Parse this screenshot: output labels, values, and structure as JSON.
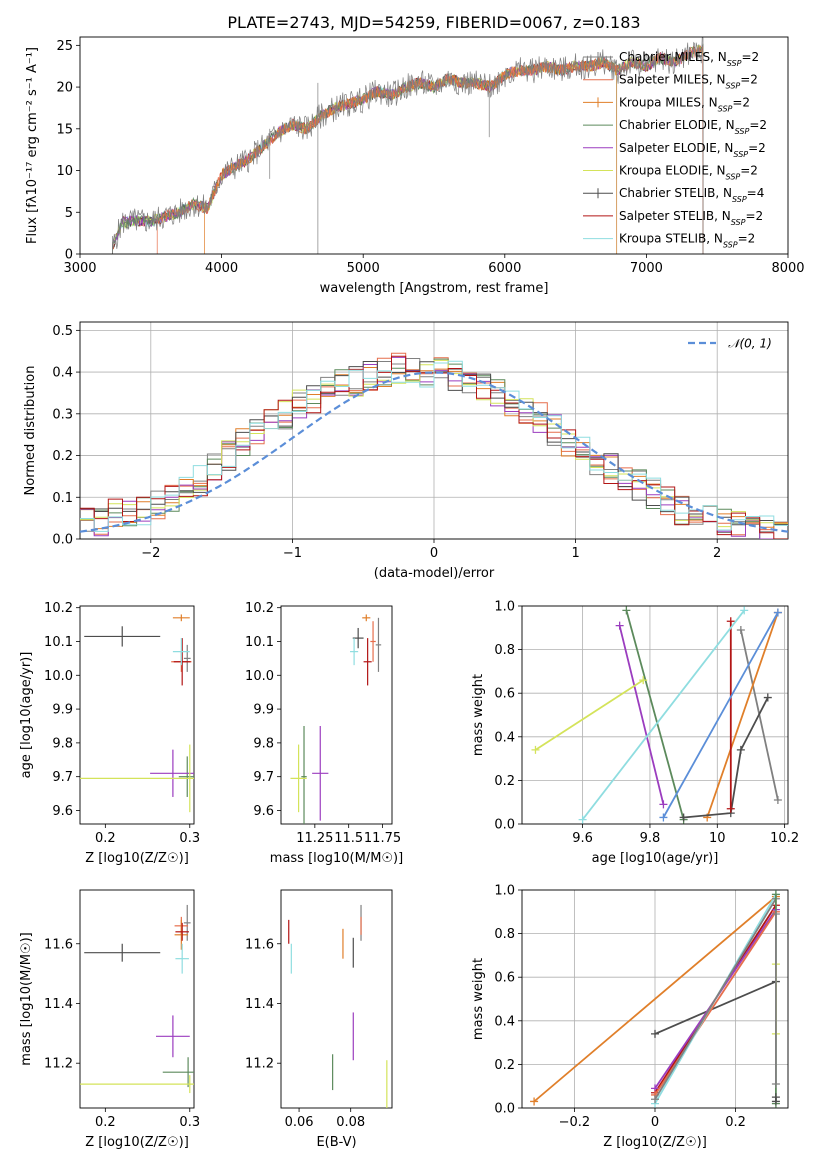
{
  "figure": {
    "title": "PLATE=2743, MJD=54259, FIBERID=0067, z=0.183"
  },
  "models": [
    {
      "name": "Chabrier MILES, N_SSP=2",
      "label_main": "Chabrier MILES, N",
      "label_sub": "SSP",
      "label_tail": "=2",
      "color": "#808080"
    },
    {
      "name": "Salpeter MILES, N_SSP=2",
      "label_main": "Salpeter MILES, N",
      "label_sub": "SSP",
      "label_tail": "=2",
      "color": "#e66e4c"
    },
    {
      "name": "Kroupa MILES, N_SSP=2",
      "label_main": "Kroupa MILES, N",
      "label_sub": "SSP",
      "label_tail": "=2",
      "color": "#e07f2a"
    },
    {
      "name": "Chabrier ELODIE, N_SSP=2",
      "label_main": "Chabrier ELODIE, N",
      "label_sub": "SSP",
      "label_tail": "=2",
      "color": "#5c8a5c"
    },
    {
      "name": "Salpeter ELODIE, N_SSP=2",
      "label_main": "Salpeter ELODIE, N",
      "label_sub": "SSP",
      "label_tail": "=2",
      "color": "#9b3dbf"
    },
    {
      "name": "Kroupa ELODIE, N_SSP=2",
      "label_main": "Kroupa ELODIE, N",
      "label_sub": "SSP",
      "label_tail": "=2",
      "color": "#d4e35a"
    },
    {
      "name": "Chabrier STELIB, N_SSP=4",
      "label_main": "Chabrier STELIB, N",
      "label_sub": "SSP",
      "label_tail": "=4",
      "color": "#4d4d4d"
    },
    {
      "name": "Salpeter STELIB, N_SSP=2",
      "label_main": "Salpeter STELIB, N",
      "label_sub": "SSP",
      "label_tail": "=2",
      "color": "#b21515"
    },
    {
      "name": "Kroupa STELIB, N_SSP=2",
      "label_main": "Kroupa STELIB, N",
      "label_sub": "SSP",
      "label_tail": "=2",
      "color": "#8fdde0"
    }
  ],
  "chart_data": [
    {
      "id": "spectrum",
      "type": "line",
      "xlabel": "wavelength [Angstrom, rest frame]",
      "ylabel": "Flux [fλ10⁻¹⁷ erg cm⁻² s⁻¹ A⁻¹]",
      "xlim": [
        3000,
        8000
      ],
      "ylim": [
        0,
        26
      ],
      "xticks": [
        3000,
        4000,
        5000,
        6000,
        7000,
        8000
      ],
      "yticks": [
        0,
        5,
        10,
        15,
        20,
        25
      ],
      "grid": false,
      "legend": "top-right",
      "x": [
        3220,
        3300,
        3400,
        3500,
        3600,
        3700,
        3800,
        3900,
        4000,
        4100,
        4200,
        4300,
        4400,
        4500,
        4600,
        4700,
        4800,
        4900,
        5000,
        5100,
        5200,
        5300,
        5400,
        5500,
        5600,
        5700,
        5800,
        5900,
        6000,
        6100,
        6200,
        6300,
        6400,
        6500,
        6600,
        6700,
        6800,
        6900,
        7000,
        7100,
        7200,
        7300,
        7400
      ],
      "y": [
        0.5,
        3.8,
        4.0,
        3.9,
        4.5,
        5.0,
        6.0,
        5.5,
        9.5,
        10.5,
        11.5,
        13.0,
        14.5,
        15.5,
        15.0,
        16.5,
        17.5,
        18.0,
        18.5,
        19.5,
        19.0,
        20.0,
        20.5,
        20.0,
        21.0,
        20.5,
        20.5,
        20.0,
        21.5,
        22.0,
        22.0,
        22.5,
        22.0,
        22.5,
        22.5,
        23.0,
        22.0,
        23.0,
        22.5,
        23.5,
        23.0,
        24.0,
        24.5
      ],
      "series_start_wavelengths": [
        3230,
        3545,
        3880,
        3230,
        3230,
        3230,
        3230,
        3230,
        3230
      ],
      "series_end_wavelengths": [
        7400,
        7400,
        6790,
        7400,
        7400,
        7400,
        7400,
        7400,
        6790
      ]
    },
    {
      "id": "residuals",
      "type": "line",
      "xlabel": "(data-model)/error",
      "ylabel": "Normed distribution",
      "xlim": [
        -2.5,
        2.5
      ],
      "ylim": [
        0,
        0.52
      ],
      "xticks": [
        -2,
        -1,
        0,
        1,
        2
      ],
      "yticks": [
        0.0,
        0.1,
        0.2,
        0.3,
        0.4,
        0.5
      ],
      "grid": true,
      "legend": "top-right",
      "legend_label": "𝒩(0, 1)",
      "gaussian": {
        "mean": 0,
        "sigma": 1,
        "color": "#5b8ed8"
      },
      "hist_bin_width": 0.1,
      "hist_centers": [
        -2.45,
        -2.35,
        -2.25,
        -2.15,
        -2.05,
        -1.95,
        -1.85,
        -1.75,
        -1.65,
        -1.55,
        -1.45,
        -1.35,
        -1.25,
        -1.15,
        -1.05,
        -0.95,
        -0.85,
        -0.75,
        -0.65,
        -0.55,
        -0.45,
        -0.35,
        -0.25,
        -0.15,
        -0.05,
        0.05,
        0.15,
        0.25,
        0.35,
        0.45,
        0.55,
        0.65,
        0.75,
        0.85,
        0.95,
        1.05,
        1.15,
        1.25,
        1.35,
        1.45,
        1.55,
        1.65,
        1.75,
        1.85,
        1.95,
        2.05,
        2.15,
        2.25,
        2.35,
        2.45
      ],
      "hist_base": [
        0.04,
        0.04,
        0.06,
        0.06,
        0.07,
        0.08,
        0.1,
        0.12,
        0.14,
        0.17,
        0.2,
        0.23,
        0.26,
        0.28,
        0.3,
        0.32,
        0.34,
        0.36,
        0.37,
        0.38,
        0.39,
        0.4,
        0.41,
        0.41,
        0.4,
        0.4,
        0.39,
        0.38,
        0.37,
        0.35,
        0.33,
        0.31,
        0.29,
        0.26,
        0.23,
        0.21,
        0.19,
        0.17,
        0.15,
        0.13,
        0.11,
        0.09,
        0.07,
        0.06,
        0.05,
        0.04,
        0.03,
        0.03,
        0.03,
        0.02
      ],
      "hist_jitter_seeds": [
        3,
        7,
        11,
        13,
        17,
        19,
        23,
        29,
        31
      ]
    },
    {
      "id": "age_vs_Z",
      "type": "scatter",
      "xlabel": "Z [log10(Z/Z☉)]",
      "ylabel": "age  [log10(age/yr)]",
      "xlim": [
        0.17,
        0.305
      ],
      "ylim": [
        9.56,
        10.205
      ],
      "xticks": [
        0.2,
        0.3
      ],
      "yticks": [
        9.6,
        9.7,
        9.8,
        9.9,
        10.0,
        10.1,
        10.2
      ],
      "points": [
        {
          "model": 0,
          "x": 0.297,
          "y": 10.05,
          "xerr": 0.004,
          "yerr": 0.04
        },
        {
          "model": 1,
          "x": 0.29,
          "y": 10.04,
          "xerr": 0.012,
          "yerr": 0.03
        },
        {
          "model": 2,
          "x": 0.29,
          "y": 10.17,
          "xerr": 0.01,
          "yerr": 0.01
        },
        {
          "model": 3,
          "x": 0.297,
          "y": 9.7,
          "xerr": 0.01,
          "yerr": 0.06
        },
        {
          "model": 4,
          "x": 0.28,
          "y": 9.71,
          "xerr": 0.027,
          "yerr": 0.07
        },
        {
          "model": 5,
          "x": 0.3,
          "y": 9.695,
          "xerr": 0.13,
          "yerr": 0.1
        },
        {
          "model": 6,
          "x": 0.22,
          "y": 10.115,
          "xerr": 0.045,
          "yerr": 0.03
        },
        {
          "model": 7,
          "x": 0.291,
          "y": 10.04,
          "xerr": 0.01,
          "yerr": 0.07
        },
        {
          "model": 8,
          "x": 0.29,
          "y": 10.07,
          "xerr": 0.01,
          "yerr": 0.04
        }
      ]
    },
    {
      "id": "age_vs_mass",
      "type": "scatter",
      "xlabel": "mass [log10(M/M☉)]",
      "ylabel": "",
      "xlim": [
        11.0,
        11.82
      ],
      "ylim": [
        9.56,
        10.205
      ],
      "xticks": [
        11.25,
        11.5,
        11.75
      ],
      "yticks": [
        9.6,
        9.7,
        9.8,
        9.9,
        10.0,
        10.1,
        10.2
      ],
      "points": [
        {
          "model": 0,
          "x": 11.72,
          "y": 10.09,
          "xerr": 0.02,
          "yerr": 0.08
        },
        {
          "model": 1,
          "x": 11.68,
          "y": 10.1,
          "xerr": 0.02,
          "yerr": 0.06
        },
        {
          "model": 2,
          "x": 11.63,
          "y": 10.17,
          "xerr": 0.03,
          "yerr": 0.01
        },
        {
          "model": 3,
          "x": 11.17,
          "y": 9.7,
          "xerr": 0.02,
          "yerr": 0.15
        },
        {
          "model": 4,
          "x": 11.29,
          "y": 9.71,
          "xerr": 0.06,
          "yerr": 0.14
        },
        {
          "model": 5,
          "x": 11.13,
          "y": 9.695,
          "xerr": 0.06,
          "yerr": 0.1
        },
        {
          "model": 6,
          "x": 11.57,
          "y": 10.11,
          "xerr": 0.04,
          "yerr": 0.03
        },
        {
          "model": 7,
          "x": 11.64,
          "y": 10.04,
          "xerr": 0.03,
          "yerr": 0.07
        },
        {
          "model": 8,
          "x": 11.54,
          "y": 10.07,
          "xerr": 0.03,
          "yerr": 0.04
        }
      ]
    },
    {
      "id": "weight_vs_age",
      "type": "line",
      "xlabel": "age  [log10(age/yr)]",
      "ylabel": "mass weight",
      "xlim": [
        9.42,
        10.21
      ],
      "ylim": [
        0,
        1.0
      ],
      "xticks": [
        9.6,
        9.8,
        10.0,
        10.2
      ],
      "yticks": [
        0.0,
        0.2,
        0.4,
        0.6,
        0.8,
        1.0
      ],
      "grid": true,
      "segments": [
        {
          "model": 0,
          "x": [
            10.07,
            10.18
          ],
          "y": [
            0.89,
            0.11
          ]
        },
        {
          "model": 2,
          "x": [
            9.97,
            10.18
          ],
          "y": [
            0.03,
            0.97
          ]
        },
        {
          "model": 3,
          "x": [
            9.73,
            9.9
          ],
          "y": [
            0.98,
            0.02
          ]
        },
        {
          "model": 4,
          "x": [
            9.71,
            9.84
          ],
          "y": [
            0.91,
            0.09
          ]
        },
        {
          "model": 5,
          "x": [
            9.46,
            9.78
          ],
          "y": [
            0.34,
            0.66
          ]
        },
        {
          "model": 6,
          "x": [
            9.9,
            10.04,
            10.07,
            10.15
          ],
          "y": [
            0.03,
            0.05,
            0.34,
            0.58
          ]
        },
        {
          "model": 7,
          "x": [
            10.04,
            10.04
          ],
          "y": [
            0.07,
            0.93
          ]
        },
        {
          "model": 8,
          "x": [
            9.6,
            10.08
          ],
          "y": [
            0.02,
            0.98
          ]
        },
        {
          "model": 1,
          "x": [
            9.84,
            10.18
          ],
          "y": [
            0.03,
            0.97
          ],
          "color": "#5b8ed8"
        }
      ]
    },
    {
      "id": "mass_vs_Z",
      "type": "scatter",
      "xlabel": "Z [log10(Z/Z☉)]",
      "ylabel": "mass [log10(M/M☉)]",
      "xlim": [
        0.17,
        0.305
      ],
      "ylim": [
        11.05,
        11.78
      ],
      "xticks": [
        0.2,
        0.3
      ],
      "yticks": [
        11.2,
        11.4,
        11.6
      ],
      "points": [
        {
          "model": 0,
          "x": 0.297,
          "y": 11.67,
          "xerr": 0.004,
          "yerr": 0.06
        },
        {
          "model": 1,
          "x": 0.29,
          "y": 11.66,
          "xerr": 0.008,
          "yerr": 0.03
        },
        {
          "model": 2,
          "x": 0.29,
          "y": 11.63,
          "xerr": 0.008,
          "yerr": 0.05
        },
        {
          "model": 3,
          "x": 0.298,
          "y": 11.17,
          "xerr": 0.03,
          "yerr": 0.05
        },
        {
          "model": 4,
          "x": 0.28,
          "y": 11.29,
          "xerr": 0.02,
          "yerr": 0.07
        },
        {
          "model": 5,
          "x": 0.3,
          "y": 11.13,
          "xerr": 0.13,
          "yerr": 0.03
        },
        {
          "model": 6,
          "x": 0.22,
          "y": 11.57,
          "xerr": 0.045,
          "yerr": 0.03
        },
        {
          "model": 7,
          "x": 0.291,
          "y": 11.64,
          "xerr": 0.008,
          "yerr": 0.03
        },
        {
          "model": 8,
          "x": 0.291,
          "y": 11.55,
          "xerr": 0.008,
          "yerr": 0.05
        }
      ]
    },
    {
      "id": "mass_vs_ebv",
      "type": "scatter",
      "xlabel": "E(B-V)",
      "ylabel": "",
      "xlim": [
        0.053,
        0.096
      ],
      "ylim": [
        11.05,
        11.78
      ],
      "xticks": [
        0.06,
        0.08
      ],
      "yticks": [
        11.2,
        11.4,
        11.6
      ],
      "points": [
        {
          "model": 0,
          "x": 0.084,
          "y": 11.67,
          "xerr": 0.0,
          "yerr": 0.06
        },
        {
          "model": 1,
          "x": 0.084,
          "y": 11.66,
          "xerr": 0.0,
          "yerr": 0.03
        },
        {
          "model": 2,
          "x": 0.077,
          "y": 11.6,
          "xerr": 0.0,
          "yerr": 0.05
        },
        {
          "model": 3,
          "x": 0.073,
          "y": 11.17,
          "xerr": 0.0,
          "yerr": 0.06
        },
        {
          "model": 4,
          "x": 0.081,
          "y": 11.29,
          "xerr": 0.0,
          "yerr": 0.08
        },
        {
          "model": 5,
          "x": 0.094,
          "y": 11.13,
          "xerr": 0.0,
          "yerr": 0.08
        },
        {
          "model": 6,
          "x": 0.081,
          "y": 11.57,
          "xerr": 0.0,
          "yerr": 0.05
        },
        {
          "model": 7,
          "x": 0.056,
          "y": 11.64,
          "xerr": 0.0,
          "yerr": 0.04
        },
        {
          "model": 8,
          "x": 0.057,
          "y": 11.55,
          "xerr": 0.0,
          "yerr": 0.05
        }
      ]
    },
    {
      "id": "weight_vs_Z",
      "type": "line",
      "xlabel": "Z [log10(Z/Z☉)]",
      "ylabel": "mass weight",
      "xlim": [
        -0.33,
        0.33
      ],
      "ylim": [
        0,
        1.0
      ],
      "xticks": [
        -0.2,
        0.0,
        0.2
      ],
      "yticks": [
        0.0,
        0.2,
        0.4,
        0.6,
        0.8,
        1.0
      ],
      "grid": true,
      "segments": [
        {
          "model": 2,
          "x": [
            -0.3,
            0.3
          ],
          "y": [
            0.03,
            0.97
          ]
        },
        {
          "model": 6,
          "x": [
            0.0,
            0.3
          ],
          "y": [
            0.34,
            0.58
          ]
        },
        {
          "model": 7,
          "x": [
            0.0,
            0.3
          ],
          "y": [
            0.07,
            0.93
          ]
        },
        {
          "model": 4,
          "x": [
            0.0,
            0.3
          ],
          "y": [
            0.09,
            0.91
          ]
        },
        {
          "model": 1,
          "x": [
            0.0,
            0.3
          ],
          "y": [
            0.06,
            0.9
          ]
        },
        {
          "model": 8,
          "x": [
            0.0,
            0.3
          ],
          "y": [
            0.02,
            0.98
          ]
        },
        {
          "model": 0,
          "x": [
            0.0,
            0.3
          ],
          "y": [
            0.04,
            0.96
          ]
        },
        {
          "model": 3,
          "x": [
            0.3,
            0.3
          ],
          "y": [
            0.02,
            0.98
          ]
        },
        {
          "model": 5,
          "x": [
            0.3,
            0.3
          ],
          "y": [
            0.34,
            0.66
          ]
        },
        {
          "model": 0,
          "x": [
            0.3,
            0.3
          ],
          "y": [
            0.11,
            0.89
          ]
        },
        {
          "model": 6,
          "x": [
            0.3,
            0.3
          ],
          "y": [
            0.03,
            0.05
          ]
        }
      ]
    }
  ]
}
